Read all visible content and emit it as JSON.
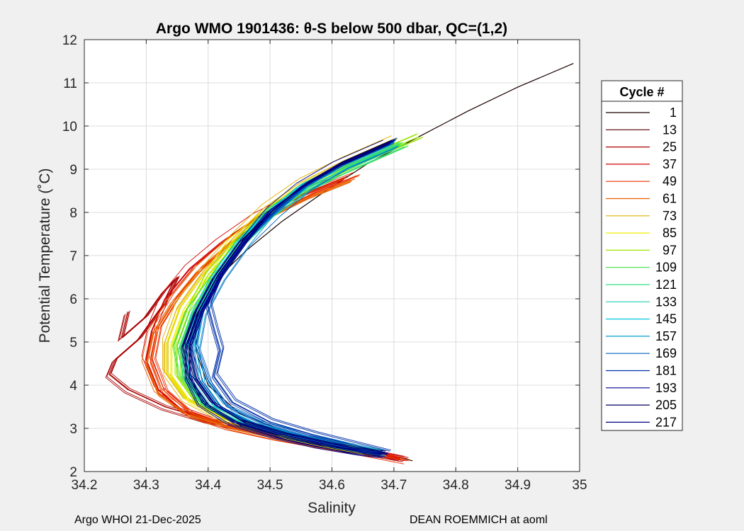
{
  "chart_data": {
    "type": "line",
    "title": "Argo WMO 1901436: θ-S below 500 dbar,  QC=(1,2)",
    "xlabel": "Salinity",
    "ylabel": "Potential Temperature (˚C)",
    "xlim": [
      34.2,
      35.0
    ],
    "ylim": [
      2,
      12
    ],
    "xticks": [
      "34.2",
      "34.3",
      "34.4",
      "34.5",
      "34.6",
      "34.7",
      "34.8",
      "34.9",
      "35"
    ],
    "yticks": [
      "2",
      "3",
      "4",
      "5",
      "6",
      "7",
      "8",
      "9",
      "10",
      "11",
      "12"
    ],
    "grid": true,
    "legend": {
      "title": "Cycle #",
      "position": "right",
      "entries": [
        "1",
        "13",
        "25",
        "37",
        "49",
        "61",
        "73",
        "85",
        "97",
        "109",
        "121",
        "133",
        "145",
        "157",
        "169",
        "181",
        "193",
        "205",
        "217"
      ],
      "colors": [
        "#1a0000",
        "#5a0000",
        "#a80000",
        "#d40000",
        "#ee3000",
        "#e86000",
        "#e0b000",
        "#eeee00",
        "#9ae600",
        "#40e040",
        "#30e080",
        "#20d0b0",
        "#00c8e0",
        "#0098d0",
        "#0060c0",
        "#0030a8",
        "#000090",
        "#000060",
        "#000080"
      ]
    },
    "series": [
      {
        "name": "1",
        "color": "#1a0000",
        "x": [
          34.99,
          34.9,
          34.82,
          34.74,
          34.66,
          34.59,
          34.52,
          34.46,
          34.41,
          34.38,
          34.38,
          34.4,
          34.45,
          34.52,
          34.6,
          34.67,
          34.73
        ],
        "y": [
          11.45,
          10.9,
          10.35,
          9.75,
          9.15,
          8.5,
          7.8,
          7.1,
          6.4,
          5.6,
          4.8,
          4.0,
          3.35,
          2.95,
          2.65,
          2.45,
          2.25
        ]
      },
      {
        "name": "25",
        "color": "#a80000",
        "x": [
          34.27,
          34.26,
          34.3,
          34.33,
          34.35,
          34.33,
          34.29,
          34.25,
          34.24,
          34.27,
          34.33,
          34.4,
          34.48,
          34.56,
          34.64,
          34.72
        ],
        "y": [
          5.7,
          5.1,
          5.6,
          6.2,
          6.5,
          5.9,
          5.1,
          4.6,
          4.25,
          3.9,
          3.5,
          3.2,
          2.95,
          2.7,
          2.5,
          2.3
        ]
      },
      {
        "name": "37",
        "color": "#d40000",
        "x": [
          34.62,
          34.55,
          34.48,
          34.42,
          34.37,
          34.33,
          34.31,
          34.3,
          34.32,
          34.36,
          34.42,
          34.5,
          34.58,
          34.66,
          34.71
        ],
        "y": [
          8.8,
          8.4,
          7.9,
          7.3,
          6.7,
          6.0,
          5.3,
          4.6,
          3.9,
          3.4,
          3.1,
          2.85,
          2.65,
          2.45,
          2.3
        ]
      },
      {
        "name": "49",
        "color": "#ee3000",
        "x": [
          34.64,
          34.57,
          34.5,
          34.44,
          34.39,
          34.35,
          34.32,
          34.31,
          34.33,
          34.37,
          34.43,
          34.51,
          34.59,
          34.66,
          34.72
        ],
        "y": [
          8.85,
          8.45,
          7.95,
          7.35,
          6.75,
          6.05,
          5.35,
          4.6,
          3.85,
          3.35,
          3.05,
          2.8,
          2.6,
          2.42,
          2.25
        ]
      },
      {
        "name": "61",
        "color": "#e86000",
        "x": [
          34.63,
          34.56,
          34.49,
          34.43,
          34.38,
          34.34,
          34.31,
          34.3,
          34.32,
          34.37,
          34.44,
          34.52,
          34.6,
          34.67
        ],
        "y": [
          8.75,
          8.35,
          7.85,
          7.25,
          6.6,
          5.9,
          5.2,
          4.5,
          3.8,
          3.3,
          3.0,
          2.75,
          2.55,
          2.4
        ]
      },
      {
        "name": "73",
        "color": "#e0b000",
        "x": [
          34.7,
          34.62,
          34.55,
          34.49,
          34.44,
          34.39,
          34.35,
          34.33,
          34.33,
          34.36,
          34.42,
          34.5,
          34.58,
          34.66
        ],
        "y": [
          9.7,
          9.2,
          8.7,
          8.1,
          7.4,
          6.6,
          5.8,
          5.0,
          4.3,
          3.7,
          3.25,
          2.9,
          2.65,
          2.45
        ]
      },
      {
        "name": "85",
        "color": "#eeee00",
        "x": [
          34.71,
          34.63,
          34.56,
          34.5,
          34.44,
          34.4,
          34.36,
          34.34,
          34.34,
          34.37,
          34.43,
          34.51,
          34.59,
          34.66
        ],
        "y": [
          9.65,
          9.15,
          8.65,
          8.05,
          7.35,
          6.55,
          5.75,
          4.95,
          4.25,
          3.65,
          3.2,
          2.88,
          2.63,
          2.45
        ]
      },
      {
        "name": "97",
        "color": "#9ae600",
        "x": [
          34.74,
          34.65,
          34.57,
          34.5,
          34.45,
          34.4,
          34.37,
          34.35,
          34.35,
          34.38,
          34.44,
          34.52,
          34.6,
          34.67
        ],
        "y": [
          9.75,
          9.2,
          8.65,
          8.05,
          7.35,
          6.55,
          5.75,
          4.95,
          4.2,
          3.6,
          3.15,
          2.85,
          2.6,
          2.45
        ]
      },
      {
        "name": "109",
        "color": "#40e040",
        "x": [
          34.72,
          34.64,
          34.56,
          34.5,
          34.45,
          34.41,
          34.37,
          34.35,
          34.36,
          34.39,
          34.45,
          34.53,
          34.61,
          34.67
        ],
        "y": [
          9.6,
          9.1,
          8.6,
          8.0,
          7.3,
          6.5,
          5.7,
          4.9,
          4.2,
          3.6,
          3.15,
          2.85,
          2.6,
          2.45
        ]
      },
      {
        "name": "121",
        "color": "#30e080",
        "x": [
          34.71,
          34.63,
          34.56,
          34.5,
          34.45,
          34.41,
          34.38,
          34.36,
          34.36,
          34.39,
          34.45,
          34.53,
          34.61,
          34.67
        ],
        "y": [
          9.55,
          9.05,
          8.55,
          7.95,
          7.25,
          6.45,
          5.65,
          4.85,
          4.15,
          3.55,
          3.12,
          2.82,
          2.58,
          2.43
        ]
      },
      {
        "name": "133",
        "color": "#20d0b0",
        "x": [
          34.7,
          34.62,
          34.55,
          34.49,
          34.45,
          34.41,
          34.38,
          34.36,
          34.37,
          34.4,
          34.46,
          34.54,
          34.62,
          34.68
        ],
        "y": [
          9.55,
          9.05,
          8.55,
          7.95,
          7.25,
          6.45,
          5.65,
          4.85,
          4.1,
          3.5,
          3.1,
          2.8,
          2.57,
          2.42
        ]
      },
      {
        "name": "145",
        "color": "#00c8e0",
        "x": [
          34.7,
          34.62,
          34.55,
          34.5,
          34.45,
          34.41,
          34.38,
          34.37,
          34.38,
          34.41,
          34.47,
          34.55,
          34.62,
          34.68
        ],
        "y": [
          9.6,
          9.1,
          8.6,
          8.0,
          7.3,
          6.5,
          5.7,
          4.9,
          4.1,
          3.5,
          3.1,
          2.8,
          2.57,
          2.42
        ]
      },
      {
        "name": "157",
        "color": "#0098d0",
        "x": [
          34.7,
          34.62,
          34.56,
          34.5,
          34.46,
          34.42,
          34.39,
          34.38,
          34.39,
          34.42,
          34.48,
          34.56,
          34.63,
          34.68
        ],
        "y": [
          9.6,
          9.1,
          8.6,
          8.0,
          7.3,
          6.5,
          5.7,
          4.9,
          4.1,
          3.5,
          3.1,
          2.8,
          2.57,
          2.42
        ]
      },
      {
        "name": "169",
        "color": "#0060c0",
        "x": [
          34.7,
          34.62,
          34.56,
          34.51,
          34.46,
          34.42,
          34.39,
          34.38,
          34.4,
          34.43,
          34.49,
          34.56,
          34.63,
          34.68
        ],
        "y": [
          9.6,
          9.1,
          8.6,
          8.0,
          7.3,
          6.5,
          5.7,
          4.9,
          4.1,
          3.5,
          3.1,
          2.8,
          2.57,
          2.42
        ]
      },
      {
        "name": "181",
        "color": "#0030a8",
        "x": [
          34.7,
          34.62,
          34.56,
          34.51,
          34.46,
          34.42,
          34.4,
          34.41,
          34.42,
          34.41,
          34.44,
          34.5,
          34.57,
          34.64,
          34.69
        ],
        "y": [
          9.65,
          9.15,
          8.65,
          8.05,
          7.35,
          6.55,
          5.85,
          5.3,
          4.8,
          4.2,
          3.6,
          3.15,
          2.85,
          2.6,
          2.42
        ]
      },
      {
        "name": "193",
        "color": "#000090",
        "x": [
          34.7,
          34.62,
          34.56,
          34.5,
          34.46,
          34.42,
          34.39,
          34.37,
          34.37,
          34.39,
          34.44,
          34.51,
          34.58,
          34.65,
          34.69
        ],
        "y": [
          9.65,
          9.15,
          8.65,
          8.05,
          7.35,
          6.55,
          5.75,
          4.95,
          4.2,
          3.6,
          3.15,
          2.85,
          2.62,
          2.45,
          2.4
        ]
      },
      {
        "name": "205",
        "color": "#000060",
        "x": [
          34.69,
          34.61,
          34.55,
          34.5,
          34.45,
          34.41,
          34.38,
          34.36,
          34.37,
          34.4,
          34.45,
          34.52,
          34.59,
          34.65,
          34.68
        ],
        "y": [
          9.6,
          9.1,
          8.6,
          8.0,
          7.3,
          6.5,
          5.7,
          4.9,
          4.15,
          3.55,
          3.12,
          2.82,
          2.6,
          2.45,
          2.4
        ]
      },
      {
        "name": "217",
        "color": "#000080",
        "x": [
          34.69,
          34.61,
          34.55,
          34.5,
          34.46,
          34.42,
          34.39,
          34.37,
          34.38,
          34.41,
          34.46,
          34.53,
          34.6,
          34.65,
          34.68
        ],
        "y": [
          9.6,
          9.1,
          8.6,
          8.0,
          7.3,
          6.5,
          5.7,
          4.9,
          4.15,
          3.55,
          3.12,
          2.82,
          2.6,
          2.45,
          2.4
        ]
      }
    ]
  },
  "footer": {
    "left": "Argo WHOI 21-Dec-2025",
    "right": "DEAN ROEMMICH at aoml"
  }
}
